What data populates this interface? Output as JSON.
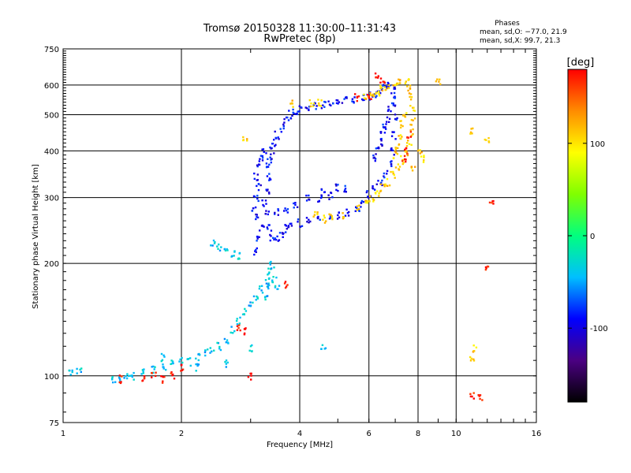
{
  "chart_data": {
    "type": "scatter",
    "title": "Tromsø 20150328 11:30:00–11:31:43",
    "subtitle": "RwPretec (8p)",
    "xlabel": "Frequency [MHz]",
    "ylabel": "Stationary phase Virtual Height [km]",
    "x_scale": "log",
    "y_scale": "log",
    "xlim": [
      1,
      16
    ],
    "ylim": [
      75,
      750
    ],
    "x_ticks": [
      1,
      2,
      4,
      6,
      8,
      10,
      16
    ],
    "y_ticks": [
      75,
      100,
      200,
      300,
      400,
      500,
      600,
      750
    ],
    "grid": true,
    "phase_stats": {
      "heading": "Phases",
      "line_o": "mean, sd,O: −77.0, 21.9",
      "line_x": "mean, sd,X: 99.7, 21.3"
    },
    "colorbar": {
      "label": "[deg]",
      "range": [
        -180,
        180
      ],
      "ticks": [
        100,
        0,
        -100
      ],
      "colors": [
        "#000000",
        "#4b0082",
        "#0000ff",
        "#00bfff",
        "#00ff7f",
        "#80ff00",
        "#ffff00",
        "#ff8c00",
        "#ff0000"
      ]
    },
    "series": [
      {
        "values_note": "",
        "phase": -90,
        "points": [
          [
            3.1,
            215
          ],
          [
            3.15,
            235
          ],
          [
            3.2,
            250
          ],
          [
            3.1,
            265
          ],
          [
            3.05,
            280
          ],
          [
            3.1,
            300
          ],
          [
            3.15,
            320
          ],
          [
            3.1,
            340
          ],
          [
            3.15,
            360
          ],
          [
            3.2,
            380
          ],
          [
            3.25,
            395
          ],
          [
            3.3,
            370
          ],
          [
            3.35,
            340
          ],
          [
            3.3,
            310
          ],
          [
            3.25,
            290
          ],
          [
            3.3,
            270
          ],
          [
            3.35,
            250
          ],
          [
            3.4,
            235
          ],
          [
            3.5,
            232
          ],
          [
            3.6,
            240
          ],
          [
            3.7,
            248
          ],
          [
            3.8,
            252
          ],
          [
            4.0,
            256
          ],
          [
            4.2,
            260
          ],
          [
            4.5,
            262
          ],
          [
            4.8,
            265
          ],
          [
            5.0,
            268
          ],
          [
            5.3,
            272
          ],
          [
            5.6,
            280
          ],
          [
            5.8,
            290
          ],
          [
            6.0,
            305
          ],
          [
            6.2,
            318
          ],
          [
            6.4,
            330
          ],
          [
            6.6,
            345
          ],
          [
            6.8,
            370
          ],
          [
            6.9,
            400
          ],
          [
            6.95,
            440
          ],
          [
            7.0,
            490
          ],
          [
            6.95,
            540
          ],
          [
            6.9,
            580
          ],
          [
            6.8,
            600
          ],
          [
            6.6,
            590
          ],
          [
            6.4,
            575
          ],
          [
            6.2,
            565
          ],
          [
            6.0,
            560
          ],
          [
            5.8,
            555
          ],
          [
            5.5,
            550
          ],
          [
            5.2,
            545
          ],
          [
            5.0,
            540
          ],
          [
            4.8,
            535
          ],
          [
            4.6,
            530
          ],
          [
            4.4,
            528
          ],
          [
            4.2,
            525
          ],
          [
            4.0,
            520
          ],
          [
            3.9,
            510
          ],
          [
            3.8,
            500
          ],
          [
            3.7,
            480
          ],
          [
            3.6,
            460
          ],
          [
            3.5,
            440
          ],
          [
            3.45,
            420
          ],
          [
            3.4,
            400
          ],
          [
            3.35,
            380
          ],
          [
            4.2,
            300
          ],
          [
            4.5,
            298
          ],
          [
            4.8,
            302
          ],
          [
            5.0,
            320
          ],
          [
            5.2,
            318
          ],
          [
            4.6,
            310
          ],
          [
            3.9,
            285
          ],
          [
            3.7,
            280
          ],
          [
            3.5,
            275
          ],
          [
            6.9,
            560
          ],
          [
            6.8,
            520
          ],
          [
            6.7,
            480
          ],
          [
            6.6,
            460
          ],
          [
            6.5,
            440
          ],
          [
            6.4,
            420
          ],
          [
            6.3,
            400
          ],
          [
            6.2,
            380
          ]
        ]
      },
      {
        "values_note": "",
        "phase": -40,
        "points": [
          [
            1.05,
            103
          ],
          [
            1.1,
            104
          ],
          [
            1.4,
            98
          ],
          [
            1.5,
            100
          ],
          [
            1.6,
            102
          ],
          [
            1.7,
            104
          ],
          [
            1.8,
            106
          ],
          [
            1.9,
            108
          ],
          [
            2.0,
            110
          ],
          [
            2.1,
            109
          ],
          [
            2.2,
            112
          ],
          [
            2.3,
            115
          ],
          [
            2.4,
            116
          ],
          [
            2.5,
            120
          ],
          [
            2.6,
            125
          ],
          [
            2.7,
            132
          ],
          [
            2.8,
            140
          ],
          [
            2.9,
            148
          ],
          [
            3.0,
            155
          ],
          [
            3.1,
            162
          ],
          [
            3.2,
            170
          ],
          [
            3.3,
            180
          ],
          [
            3.35,
            190
          ],
          [
            3.4,
            198
          ],
          [
            2.4,
            228
          ],
          [
            2.5,
            220
          ],
          [
            2.6,
            214
          ],
          [
            2.7,
            211
          ],
          [
            2.8,
            210
          ],
          [
            1.35,
            97
          ],
          [
            1.45,
            99
          ],
          [
            1.8,
            112
          ],
          [
            2.2,
            105
          ],
          [
            2.6,
            108
          ],
          [
            3.0,
            118
          ],
          [
            4.6,
            118
          ],
          [
            3.3,
            160
          ],
          [
            3.35,
            175
          ],
          [
            3.45,
            182
          ],
          [
            3.5,
            170
          ]
        ]
      },
      {
        "values_note": "",
        "phase": 110,
        "points": [
          [
            4.4,
            268
          ],
          [
            4.6,
            262
          ],
          [
            4.8,
            265
          ],
          [
            5.2,
            270
          ],
          [
            5.6,
            282
          ],
          [
            5.9,
            292
          ],
          [
            6.1,
            300
          ],
          [
            6.3,
            308
          ],
          [
            6.5,
            318
          ],
          [
            6.7,
            330
          ],
          [
            6.9,
            345
          ],
          [
            7.1,
            360
          ],
          [
            7.3,
            378
          ],
          [
            7.5,
            398
          ],
          [
            7.6,
            420
          ],
          [
            7.7,
            450
          ],
          [
            7.75,
            480
          ],
          [
            7.75,
            520
          ],
          [
            7.7,
            560
          ],
          [
            7.6,
            590
          ],
          [
            7.5,
            610
          ],
          [
            7.2,
            620
          ],
          [
            7.0,
            605
          ],
          [
            6.7,
            595
          ],
          [
            6.5,
            585
          ],
          [
            6.3,
            575
          ],
          [
            6.1,
            565
          ],
          [
            5.9,
            560
          ],
          [
            4.5,
            540
          ],
          [
            4.3,
            538
          ],
          [
            3.8,
            535
          ],
          [
            7.4,
            500
          ],
          [
            7.3,
            470
          ],
          [
            7.2,
            440
          ],
          [
            7.1,
            410
          ],
          [
            7.0,
            390
          ],
          [
            8.1,
            400
          ],
          [
            8.2,
            380
          ],
          [
            7.8,
            360
          ],
          [
            2.9,
            425
          ],
          [
            9.0,
            615
          ],
          [
            11.0,
            450
          ],
          [
            11.2,
            118
          ],
          [
            11.0,
            112
          ],
          [
            12.0,
            430
          ]
        ]
      },
      {
        "values_note": "",
        "phase": 175,
        "points": [
          [
            1.4,
            98
          ],
          [
            1.6,
            98
          ],
          [
            1.7,
            100
          ],
          [
            1.8,
            98
          ],
          [
            1.9,
            100
          ],
          [
            2.0,
            105
          ],
          [
            2.8,
            135
          ],
          [
            2.9,
            132
          ],
          [
            3.0,
            100
          ],
          [
            3.7,
            175
          ],
          [
            6.3,
            640
          ],
          [
            6.5,
            620
          ],
          [
            7.4,
            380
          ],
          [
            7.5,
            400
          ],
          [
            7.6,
            440
          ],
          [
            6.0,
            555
          ],
          [
            12.3,
            290
          ],
          [
            12.0,
            196
          ],
          [
            11.0,
            88
          ],
          [
            11.5,
            88
          ],
          [
            5.6,
            555
          ]
        ]
      }
    ]
  }
}
